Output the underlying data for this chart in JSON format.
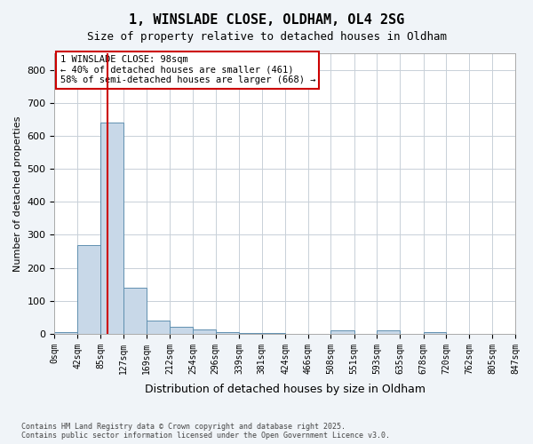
{
  "title1": "1, WINSLADE CLOSE, OLDHAM, OL4 2SG",
  "title2": "Size of property relative to detached houses in Oldham",
  "xlabel": "Distribution of detached houses by size in Oldham",
  "ylabel": "Number of detached properties",
  "bar_edges": [
    0,
    42,
    85,
    127,
    169,
    212,
    254,
    296,
    339,
    381,
    424,
    466,
    508,
    551,
    593,
    635,
    678,
    720,
    762,
    805,
    847
  ],
  "bar_values": [
    5,
    270,
    640,
    140,
    40,
    20,
    12,
    5,
    3,
    2,
    0,
    0,
    10,
    0,
    10,
    0,
    5,
    0,
    0,
    0
  ],
  "bar_color": "#c8d8e8",
  "bar_edgecolor": "#6090b0",
  "vline_x": 98,
  "vline_color": "#cc0000",
  "annotation_text": "1 WINSLADE CLOSE: 98sqm\n← 40% of detached houses are smaller (461)\n58% of semi-detached houses are larger (668) →",
  "annotation_box_color": "#ffffff",
  "annotation_box_edgecolor": "#cc0000",
  "ylim": [
    0,
    850
  ],
  "yticks": [
    0,
    100,
    200,
    300,
    400,
    500,
    600,
    700,
    800
  ],
  "tick_labels": [
    "0sqm",
    "42sqm",
    "85sqm",
    "127sqm",
    "169sqm",
    "212sqm",
    "254sqm",
    "296sqm",
    "339sqm",
    "381sqm",
    "424sqm",
    "466sqm",
    "508sqm",
    "551sqm",
    "593sqm",
    "635sqm",
    "678sqm",
    "720sqm",
    "762sqm",
    "805sqm",
    "847sqm"
  ],
  "footer": "Contains HM Land Registry data © Crown copyright and database right 2025.\nContains public sector information licensed under the Open Government Licence v3.0.",
  "bg_color": "#f0f4f8",
  "plot_bg_color": "#ffffff",
  "grid_color": "#c8d0d8"
}
